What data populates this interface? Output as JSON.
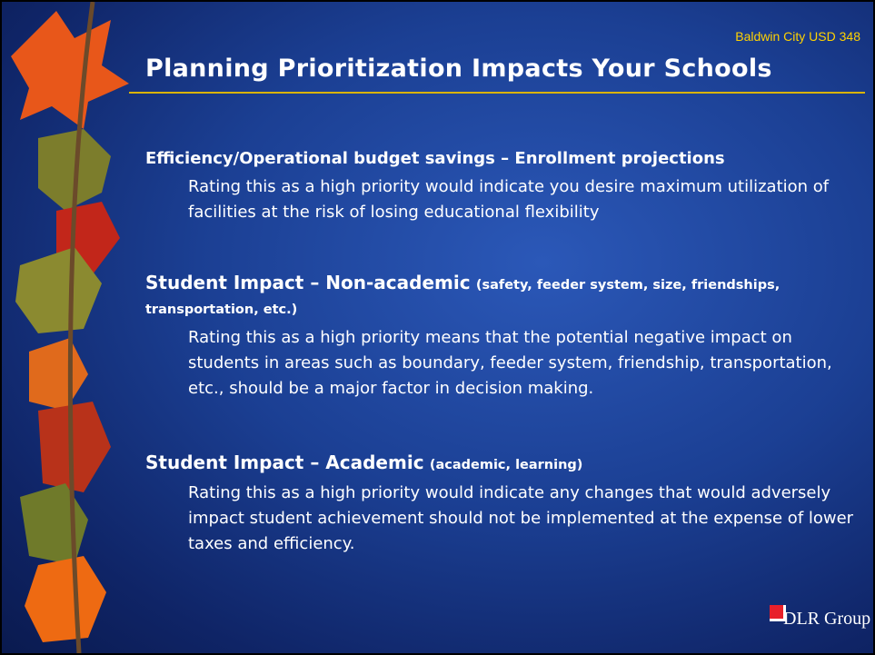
{
  "header": {
    "organization": "Baldwin City USD 348",
    "title": "Planning Prioritization Impacts Your Schools"
  },
  "sections": [
    {
      "heading": "Efficiency/Operational budget savings – Enrollment projections",
      "body": "Rating this as a high priority would indicate you desire maximum utilization of facilities at the risk of losing educational flexibility"
    },
    {
      "heading": "Student Impact – Non-academic",
      "qualifier": "(safety, feeder system, size, friendships, transportation, etc.)",
      "body": "Rating this as a high priority means that the potential negative impact on students in areas such as boundary, feeder system, friendship, transportation, etc., should be a major factor in decision making."
    },
    {
      "heading": "Student Impact – Academic",
      "qualifier": "(academic, learning)",
      "body": "Rating this as a high priority would indicate any changes that would adversely impact student achievement should not be implemented at the expense of lower taxes and efficiency."
    }
  ],
  "footer": {
    "logo": "DLR Group"
  }
}
